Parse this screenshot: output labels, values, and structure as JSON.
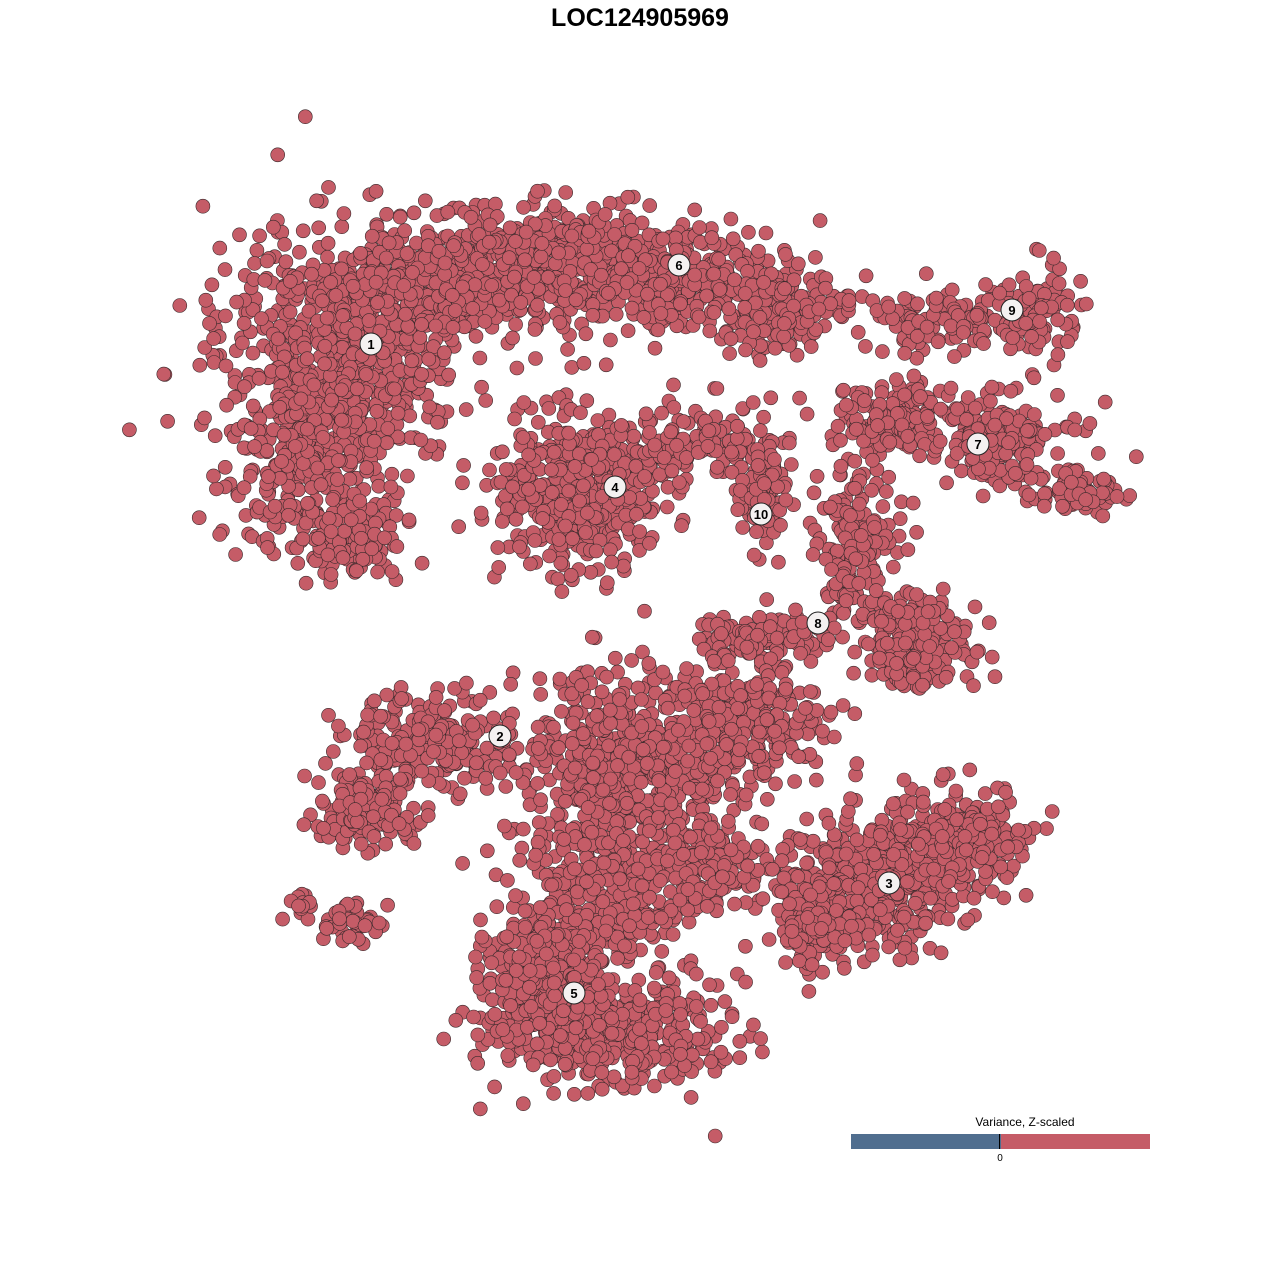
{
  "chart_data": {
    "type": "scatter",
    "title": "LOC124905969",
    "xlabel": "",
    "ylabel": "",
    "grid": false,
    "axes_visible": false,
    "point_color": "#c55c67",
    "point_outline": "#3a2a2c",
    "cluster_labels": [
      "1",
      "2",
      "3",
      "4",
      "5",
      "6",
      "7",
      "8",
      "9",
      "10"
    ],
    "legend": {
      "title": "Variance, Z-scaled",
      "placement": "bottom-right",
      "low_color": "#506e8f",
      "high_color": "#c55c67",
      "tick_label": "0"
    }
  }
}
